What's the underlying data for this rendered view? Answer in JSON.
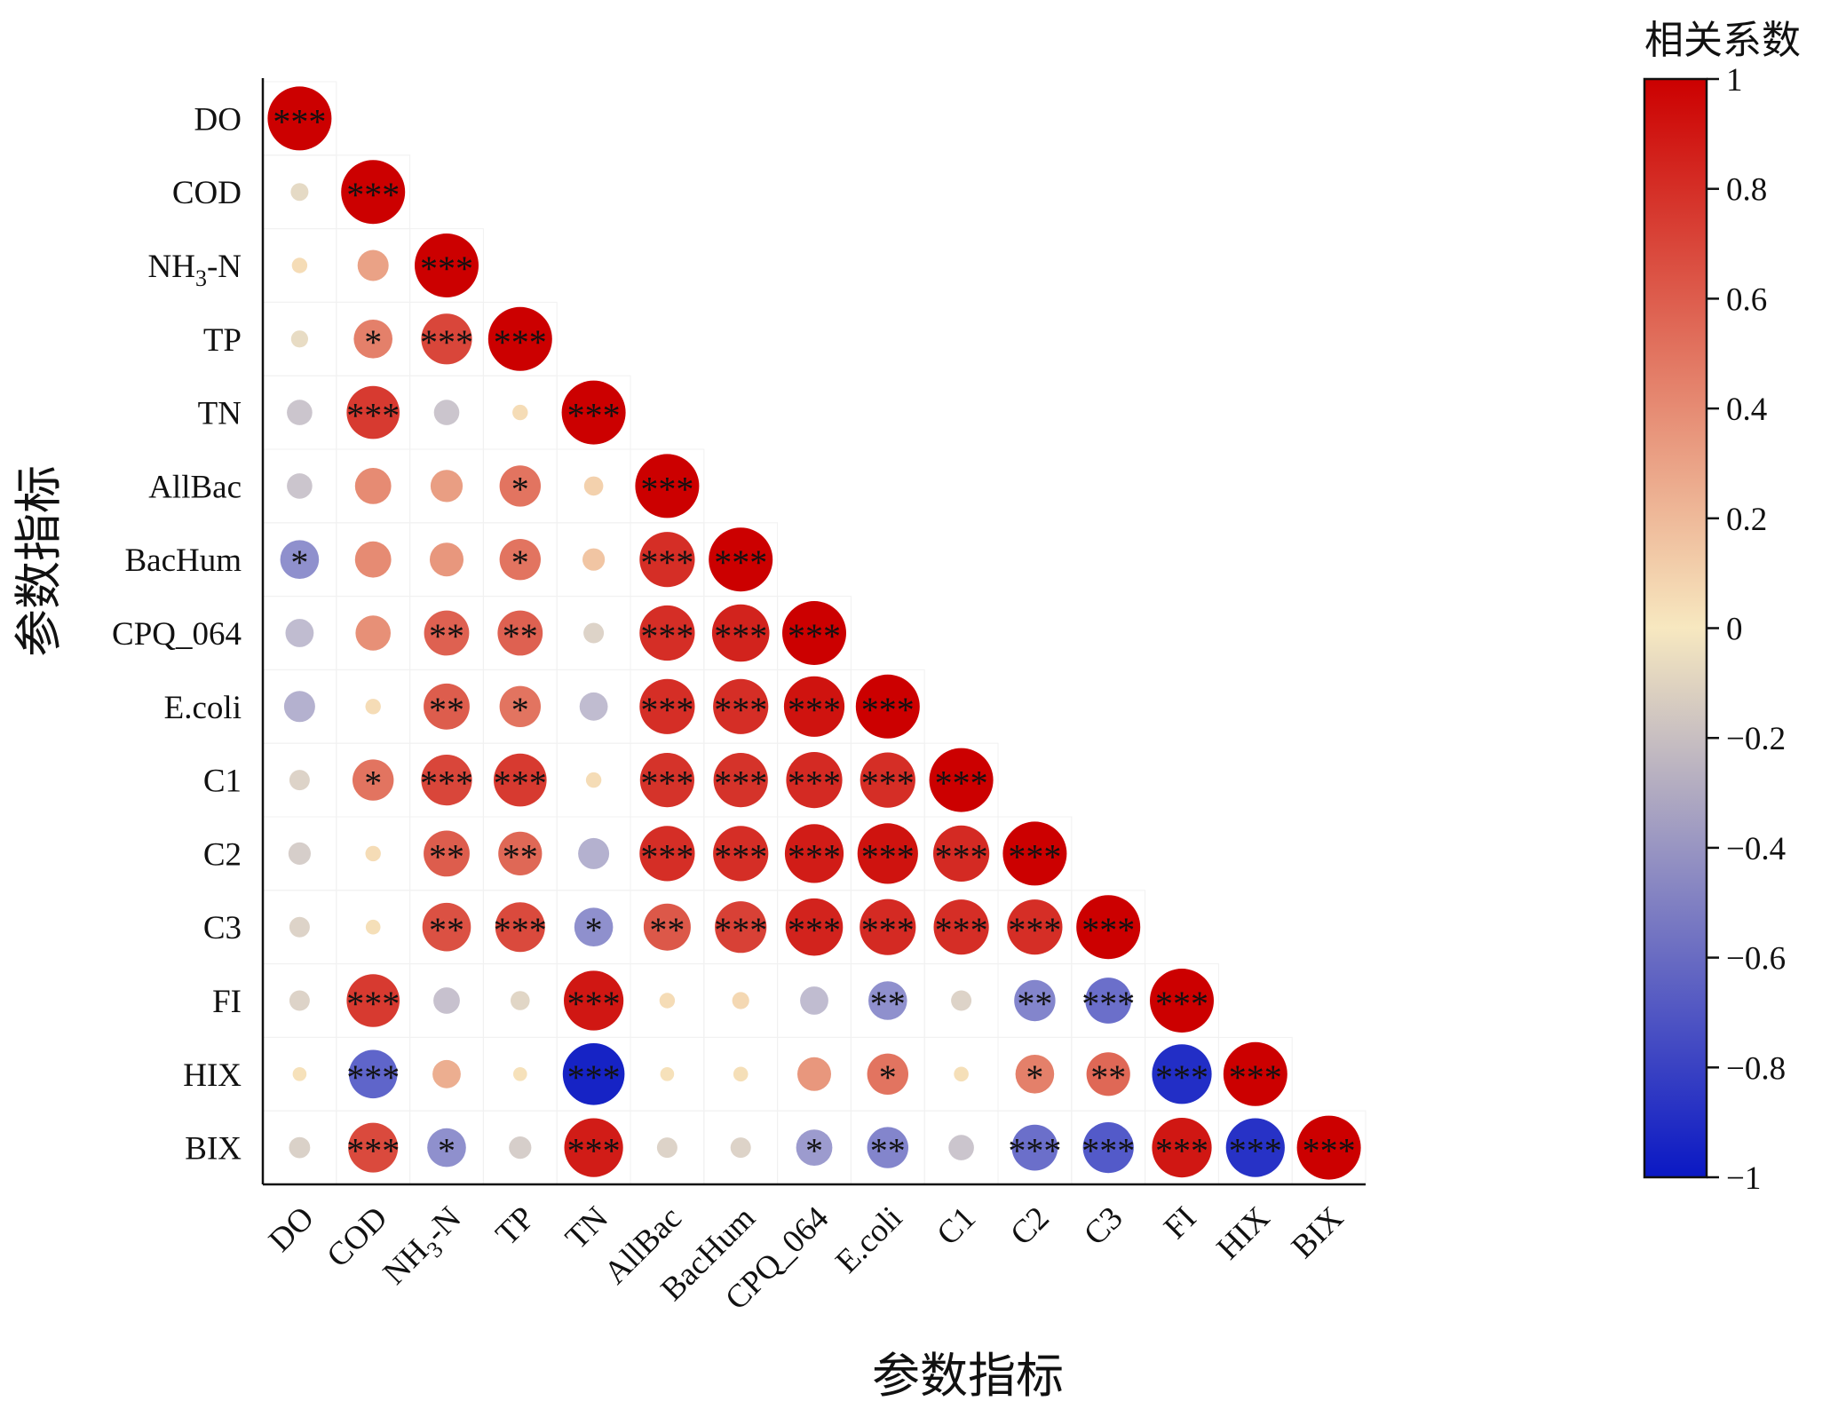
{
  "chart_data": {
    "type": "heatmap",
    "style": "lower-triangle circle correlation matrix",
    "variables": [
      {
        "label": "DO",
        "sub": ""
      },
      {
        "label": "COD",
        "sub": ""
      },
      {
        "label": "NH",
        "sub": "3",
        "suffix": "-N"
      },
      {
        "label": "TP",
        "sub": ""
      },
      {
        "label": "TN",
        "sub": ""
      },
      {
        "label": "AllBac",
        "sub": ""
      },
      {
        "label": "BacHum",
        "sub": ""
      },
      {
        "label": "CPQ_064",
        "sub": ""
      },
      {
        "label": "E.coli",
        "sub": ""
      },
      {
        "label": "C1",
        "sub": ""
      },
      {
        "label": "C2",
        "sub": ""
      },
      {
        "label": "C3",
        "sub": ""
      },
      {
        "label": "FI",
        "sub": ""
      },
      {
        "label": "HIX",
        "sub": ""
      },
      {
        "label": "BIX",
        "sub": ""
      }
    ],
    "xlabel": "参数指标",
    "ylabel": "参数指标",
    "colorbar": {
      "title": "相关系数",
      "range": [
        -1,
        1
      ],
      "ticks": [
        "1",
        "0.8",
        "0.6",
        "0.4",
        "0.2",
        "0",
        "−0.2",
        "−0.4",
        "−0.6",
        "−0.8",
        "−1"
      ],
      "colors": {
        "negative": "#0a18c4",
        "neutral": "#f7e8c0",
        "positive": "#cc0000"
      }
    },
    "cells": [
      [
        {
          "r": 1.0,
          "sig": "***"
        }
      ],
      [
        {
          "r": -0.08,
          "sig": ""
        },
        {
          "r": 1.0,
          "sig": "***"
        }
      ],
      [
        {
          "r": 0.05,
          "sig": ""
        },
        {
          "r": 0.3,
          "sig": ""
        },
        {
          "r": 1.0,
          "sig": "***"
        }
      ],
      [
        {
          "r": -0.07,
          "sig": ""
        },
        {
          "r": 0.45,
          "sig": "*"
        },
        {
          "r": 0.7,
          "sig": "***"
        },
        {
          "r": 1.0,
          "sig": "***"
        }
      ],
      [
        {
          "r": -0.2,
          "sig": ""
        },
        {
          "r": 0.75,
          "sig": "***"
        },
        {
          "r": -0.2,
          "sig": ""
        },
        {
          "r": 0.05,
          "sig": ""
        },
        {
          "r": 1.0,
          "sig": "***"
        }
      ],
      [
        {
          "r": -0.2,
          "sig": ""
        },
        {
          "r": 0.4,
          "sig": ""
        },
        {
          "r": 0.32,
          "sig": ""
        },
        {
          "r": 0.5,
          "sig": "*"
        },
        {
          "r": 0.1,
          "sig": ""
        },
        {
          "r": 1.0,
          "sig": "***"
        }
      ],
      [
        {
          "r": -0.45,
          "sig": "*"
        },
        {
          "r": 0.4,
          "sig": ""
        },
        {
          "r": 0.35,
          "sig": ""
        },
        {
          "r": 0.5,
          "sig": "*"
        },
        {
          "r": 0.15,
          "sig": ""
        },
        {
          "r": 0.8,
          "sig": "***"
        },
        {
          "r": 1.0,
          "sig": "***"
        }
      ],
      [
        {
          "r": -0.25,
          "sig": ""
        },
        {
          "r": 0.38,
          "sig": ""
        },
        {
          "r": 0.58,
          "sig": "**"
        },
        {
          "r": 0.58,
          "sig": "**"
        },
        {
          "r": -0.12,
          "sig": ""
        },
        {
          "r": 0.8,
          "sig": "***"
        },
        {
          "r": 0.85,
          "sig": "***"
        },
        {
          "r": 1.0,
          "sig": "***"
        }
      ],
      [
        {
          "r": -0.3,
          "sig": ""
        },
        {
          "r": 0.05,
          "sig": ""
        },
        {
          "r": 0.6,
          "sig": "**"
        },
        {
          "r": 0.5,
          "sig": "*"
        },
        {
          "r": -0.25,
          "sig": ""
        },
        {
          "r": 0.8,
          "sig": "***"
        },
        {
          "r": 0.8,
          "sig": "***"
        },
        {
          "r": 0.92,
          "sig": "***"
        },
        {
          "r": 1.0,
          "sig": "***"
        }
      ],
      [
        {
          "r": -0.12,
          "sig": ""
        },
        {
          "r": 0.5,
          "sig": "*"
        },
        {
          "r": 0.7,
          "sig": "***"
        },
        {
          "r": 0.75,
          "sig": "***"
        },
        {
          "r": 0.05,
          "sig": ""
        },
        {
          "r": 0.78,
          "sig": "***"
        },
        {
          "r": 0.78,
          "sig": "***"
        },
        {
          "r": 0.82,
          "sig": "***"
        },
        {
          "r": 0.8,
          "sig": "***"
        },
        {
          "r": 1.0,
          "sig": "***"
        }
      ],
      [
        {
          "r": -0.15,
          "sig": ""
        },
        {
          "r": 0.05,
          "sig": ""
        },
        {
          "r": 0.6,
          "sig": "**"
        },
        {
          "r": 0.55,
          "sig": "**"
        },
        {
          "r": -0.3,
          "sig": ""
        },
        {
          "r": 0.8,
          "sig": "***"
        },
        {
          "r": 0.8,
          "sig": "***"
        },
        {
          "r": 0.88,
          "sig": "***"
        },
        {
          "r": 0.92,
          "sig": "***"
        },
        {
          "r": 0.82,
          "sig": "***"
        },
        {
          "r": 1.0,
          "sig": "***"
        }
      ],
      [
        {
          "r": -0.12,
          "sig": ""
        },
        {
          "r": 0.04,
          "sig": ""
        },
        {
          "r": 0.65,
          "sig": "**"
        },
        {
          "r": 0.68,
          "sig": "***"
        },
        {
          "r": -0.45,
          "sig": "*"
        },
        {
          "r": 0.62,
          "sig": "**"
        },
        {
          "r": 0.72,
          "sig": "***"
        },
        {
          "r": 0.85,
          "sig": "***"
        },
        {
          "r": 0.82,
          "sig": "***"
        },
        {
          "r": 0.8,
          "sig": "***"
        },
        {
          "r": 0.8,
          "sig": "***"
        },
        {
          "r": 1.0,
          "sig": "***"
        }
      ],
      [
        {
          "r": -0.12,
          "sig": ""
        },
        {
          "r": 0.75,
          "sig": "***"
        },
        {
          "r": -0.22,
          "sig": ""
        },
        {
          "r": -0.1,
          "sig": ""
        },
        {
          "r": 0.9,
          "sig": "***"
        },
        {
          "r": 0.05,
          "sig": ""
        },
        {
          "r": 0.07,
          "sig": ""
        },
        {
          "r": -0.25,
          "sig": ""
        },
        {
          "r": -0.45,
          "sig": "**"
        },
        {
          "r": -0.12,
          "sig": ""
        },
        {
          "r": -0.5,
          "sig": "**"
        },
        {
          "r": -0.6,
          "sig": "***"
        },
        {
          "r": 1.0,
          "sig": "***"
        }
      ],
      [
        {
          "r": 0.03,
          "sig": ""
        },
        {
          "r": -0.65,
          "sig": "***"
        },
        {
          "r": 0.25,
          "sig": ""
        },
        {
          "r": 0.03,
          "sig": ""
        },
        {
          "r": -0.95,
          "sig": "***"
        },
        {
          "r": 0.03,
          "sig": ""
        },
        {
          "r": 0.04,
          "sig": ""
        },
        {
          "r": 0.35,
          "sig": ""
        },
        {
          "r": 0.5,
          "sig": "*"
        },
        {
          "r": 0.04,
          "sig": ""
        },
        {
          "r": 0.45,
          "sig": "*"
        },
        {
          "r": 0.55,
          "sig": "**"
        },
        {
          "r": -0.9,
          "sig": "***"
        },
        {
          "r": 1.0,
          "sig": "***"
        }
      ],
      [
        {
          "r": -0.13,
          "sig": ""
        },
        {
          "r": 0.68,
          "sig": "***"
        },
        {
          "r": -0.45,
          "sig": "*"
        },
        {
          "r": -0.15,
          "sig": ""
        },
        {
          "r": 0.88,
          "sig": "***"
        },
        {
          "r": -0.12,
          "sig": ""
        },
        {
          "r": -0.12,
          "sig": ""
        },
        {
          "r": -0.4,
          "sig": "*"
        },
        {
          "r": -0.5,
          "sig": "**"
        },
        {
          "r": -0.2,
          "sig": ""
        },
        {
          "r": -0.6,
          "sig": "***"
        },
        {
          "r": -0.7,
          "sig": "***"
        },
        {
          "r": 0.9,
          "sig": "***"
        },
        {
          "r": -0.88,
          "sig": "***"
        },
        {
          "r": 1.0,
          "sig": "***"
        }
      ]
    ]
  }
}
